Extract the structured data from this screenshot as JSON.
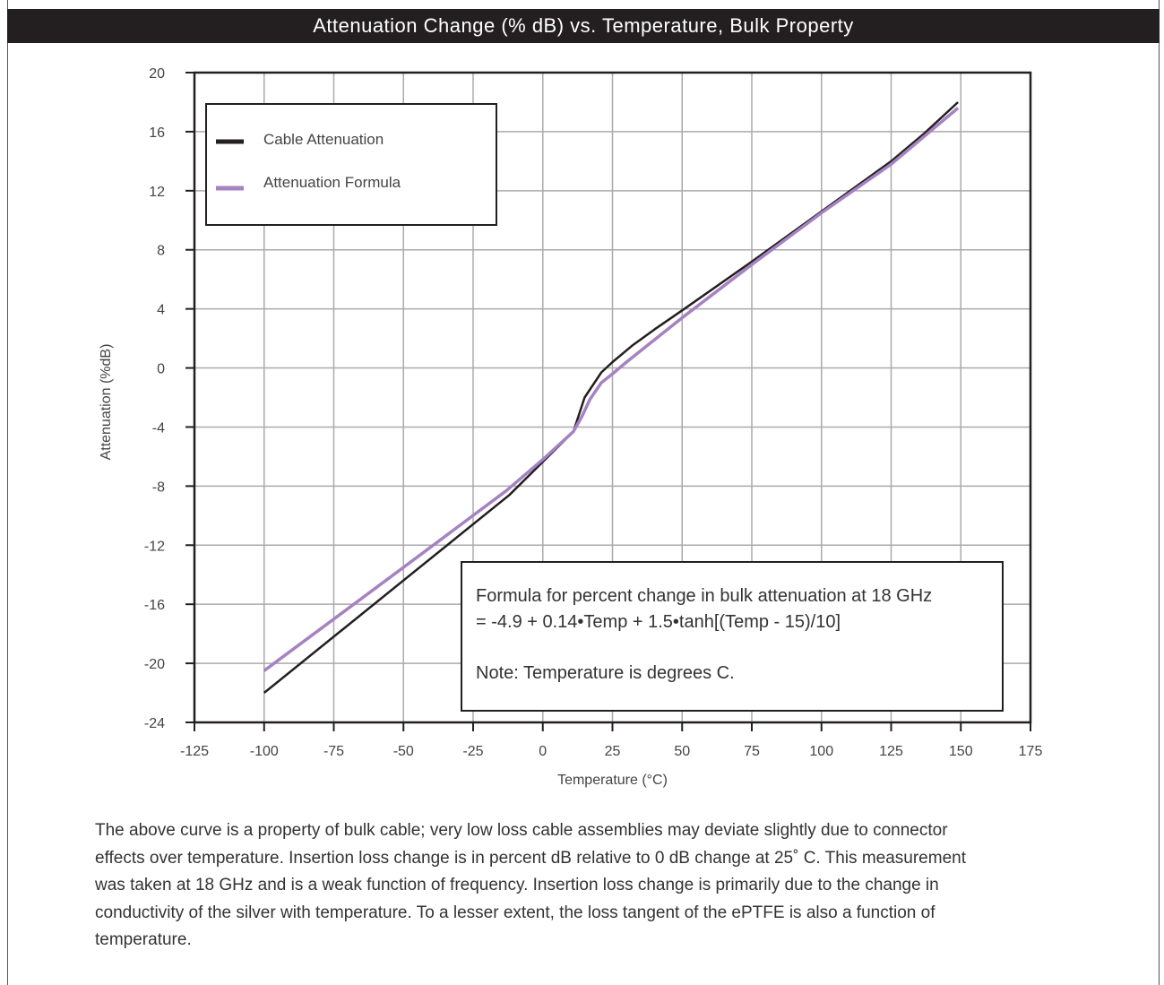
{
  "header": {
    "title": "Attenuation Change (% dB) vs. Temperature, Bulk Property"
  },
  "chart_data": {
    "type": "line",
    "xlabel": "Temperature (°C)",
    "ylabel": "Attenuation (%dB)",
    "xlim": [
      -125,
      175
    ],
    "ylim": [
      -24,
      20
    ],
    "x_ticks": [
      "-125",
      "-100",
      "-75",
      "-50",
      "-25",
      "0",
      "25",
      "50",
      "75",
      "100",
      "125",
      "150",
      "175"
    ],
    "y_ticks": [
      "20",
      "16",
      "12",
      "8",
      "4",
      "0",
      "-4",
      "-8",
      "-12",
      "-16",
      "-20",
      "-24"
    ],
    "grid": true,
    "legend_position": "top-left",
    "series": [
      {
        "name": "Cable Attenuation",
        "color": "#231f20",
        "x": [
          -100,
          -12,
          11,
          15,
          21,
          25,
          32,
          40,
          50,
          75,
          100,
          125,
          137,
          149
        ],
        "y": [
          -22,
          -8.6,
          -4.3,
          -2.0,
          -0.3,
          0.4,
          1.5,
          2.6,
          3.9,
          7.2,
          10.6,
          14,
          15.9,
          18
        ]
      },
      {
        "name": "Attenuation Formula",
        "color": "#a582c2",
        "x": [
          -100,
          -50,
          -13,
          0,
          11,
          14,
          17,
          21,
          25,
          30,
          40,
          50,
          75,
          100,
          125,
          149
        ],
        "y": [
          -20.5,
          -13.5,
          -8.3,
          -6.2,
          -4.3,
          -3.3,
          -2.1,
          -1.0,
          -0.4,
          0.4,
          1.9,
          3.4,
          7.0,
          10.5,
          13.8,
          17.6
        ]
      }
    ],
    "annotation": {
      "lines": [
        "Formula for percent change in bulk attenuation at 18 GHz",
        "= -4.9 + 0.14•Temp + 1.5•tanh[(Temp - 15)/10]",
        "",
        "Note: Temperature is degrees C."
      ]
    }
  },
  "caption": {
    "lines": [
      "The above curve is a property of bulk cable; very low loss cable assemblies may deviate slightly due to connector",
      "effects over temperature.   Insertion loss change is in percent dB relative to 0 dB change at 25˚ C. This measurement",
      "was taken at 18 GHz and is a weak function of frequency. Insertion loss change is primarily due to the change in",
      "conductivity of the silver with temperature. To a lesser extent, the loss tangent of the ePTFE is also a function of",
      "temperature."
    ]
  }
}
